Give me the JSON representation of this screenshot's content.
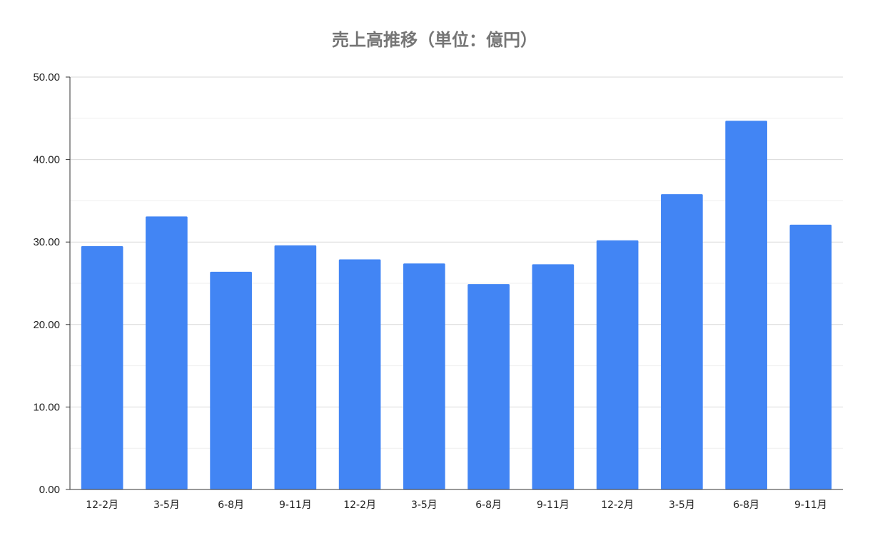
{
  "chart_data": {
    "type": "bar",
    "title": "売上高推移（単位：億円）",
    "xlabel": "",
    "ylabel": "",
    "categories": [
      "12-2月",
      "3-5月",
      "6-8月",
      "9-11月",
      "12-2月",
      "3-5月",
      "6-8月",
      "9-11月",
      "12-2月",
      "3-5月",
      "6-8月",
      "9-11月"
    ],
    "series": [
      {
        "values": [
          29.5,
          33.1,
          26.4,
          29.6,
          27.9,
          27.4,
          24.9,
          27.3,
          30.2,
          35.8,
          44.7,
          32.1
        ]
      }
    ],
    "ylim": [
      0,
      50
    ],
    "yticks": [
      "0.00",
      "10.00",
      "20.00",
      "30.00",
      "40.00",
      "50.00"
    ],
    "minor_gridlines": true,
    "legend": "none",
    "colors": {
      "bar": "#4285f4",
      "grid": "#d9d9d9",
      "minor_grid": "#efefef",
      "axis": "#333333"
    }
  }
}
